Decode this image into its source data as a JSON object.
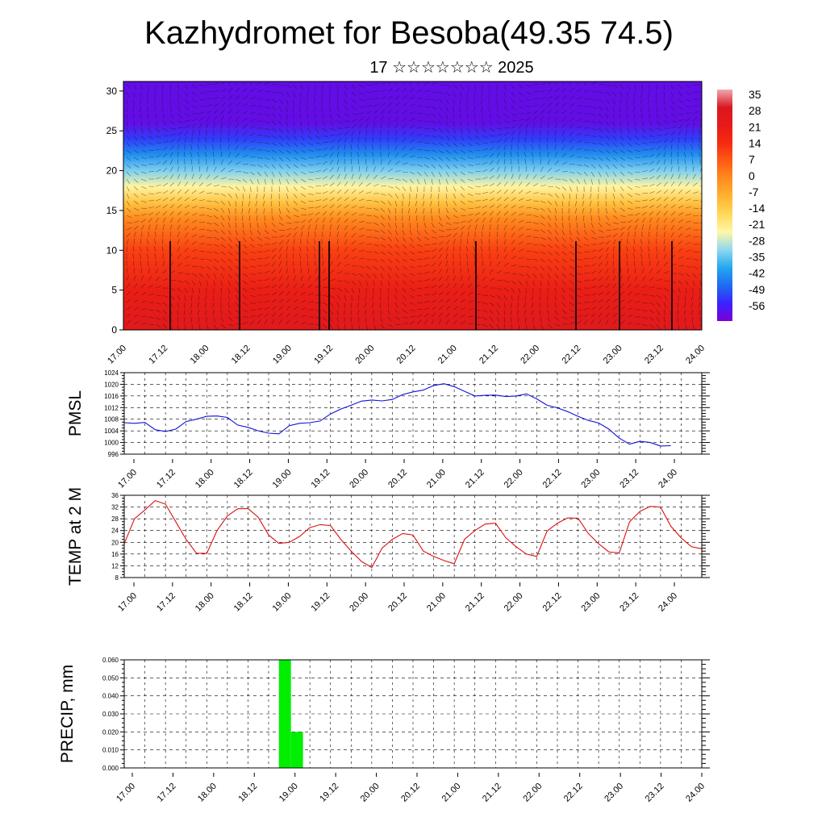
{
  "title": "Kazhydromet for Besoba(49.35 74.5)",
  "subtitle": "17 ☆☆☆☆☆☆☆ 2025",
  "time_ticks": [
    "17.00",
    "17.12",
    "18.00",
    "18.12",
    "19.00",
    "19.12",
    "20.00",
    "20.12",
    "21.00",
    "21.12",
    "22.00",
    "22.12",
    "23.00",
    "23.12",
    "24.00"
  ],
  "chart_data": [
    {
      "type": "heatmap",
      "title": "",
      "ylabel": "",
      "ylim": [
        0,
        30
      ],
      "y_ticks": [
        "0",
        "5",
        "10",
        "15",
        "20",
        "25",
        "30"
      ],
      "colorbar": {
        "labels": [
          "35",
          "28",
          "21",
          "14",
          "7",
          "0",
          "-7",
          "-14",
          "-21",
          "-28",
          "-35",
          "-42",
          "-49",
          "-56"
        ],
        "range": [
          -63,
          42
        ],
        "colors": [
          "#7a00d6",
          "#3a22ff",
          "#1e6cf0",
          "#22a8f0",
          "#8fd8f0",
          "#fff7a8",
          "#ffd85a",
          "#ffb330",
          "#ff8c1e",
          "#ff5a14",
          "#f52a10",
          "#e81a18",
          "#d81820",
          "#f2a8b0"
        ]
      },
      "temperature_profile": {
        "heights": [
          0,
          5,
          10,
          14,
          16,
          18,
          20,
          22,
          24,
          26,
          30
        ],
        "temperatures": [
          30,
          24,
          14,
          2,
          -10,
          -22,
          -32,
          -42,
          -52,
          -60,
          -60
        ]
      }
    },
    {
      "type": "line",
      "ylabel": "PMSL",
      "ylim": [
        996,
        1024
      ],
      "y_ticks": [
        "996",
        "1000",
        "1004",
        "1008",
        "1012",
        "1016",
        "1020",
        "1024"
      ],
      "color": "#1010dd",
      "x": [
        0,
        3,
        6,
        9,
        12,
        15,
        18,
        21,
        24,
        27,
        30,
        33,
        36,
        39,
        42,
        45,
        48,
        51,
        54,
        57,
        60,
        63,
        66,
        69,
        72,
        75,
        78,
        81,
        84,
        87,
        90,
        93,
        96,
        99,
        102,
        105,
        108,
        111,
        114,
        117,
        120,
        123,
        126,
        129,
        132,
        135,
        138,
        141,
        144,
        147,
        150,
        153,
        156,
        159,
        162,
        165,
        168
      ],
      "values": [
        1006.8,
        1006.6,
        1006.9,
        1004.4,
        1003.8,
        1004.6,
        1007.2,
        1008.0,
        1009.0,
        1009.1,
        1008.6,
        1006.0,
        1005.2,
        1004.0,
        1003.2,
        1003.0,
        1005.8,
        1006.6,
        1006.8,
        1007.4,
        1009.8,
        1011.5,
        1012.8,
        1014.2,
        1014.6,
        1014.3,
        1014.8,
        1016.5,
        1017.4,
        1018.0,
        1019.6,
        1020.2,
        1019.2,
        1017.6,
        1016.0,
        1016.2,
        1016.3,
        1015.8,
        1016.0,
        1016.7,
        1015.0,
        1012.8,
        1011.9,
        1010.6,
        1009.0,
        1007.6,
        1006.7,
        1004.6,
        1001.5,
        999.4,
        1000.4,
        1000.0,
        998.8,
        998.9,
        null,
        null,
        null
      ]
    },
    {
      "type": "line",
      "ylabel": "TEMP at 2 M",
      "ylim": [
        8,
        36
      ],
      "y_ticks": [
        "8",
        "12",
        "16",
        "20",
        "24",
        "28",
        "32",
        "36"
      ],
      "color": "#dd1010",
      "x": [
        0,
        3,
        6,
        9,
        12,
        15,
        18,
        21,
        24,
        27,
        30,
        33,
        36,
        39,
        42,
        45,
        48,
        51,
        54,
        57,
        60,
        63,
        66,
        69,
        72,
        75,
        78,
        81,
        84,
        87,
        90,
        93,
        96,
        99,
        102,
        105,
        108,
        111,
        114,
        117,
        120,
        123,
        126,
        129,
        132,
        135,
        138,
        141,
        144,
        147,
        150,
        153,
        156,
        159,
        162,
        165,
        168
      ],
      "values": [
        19.5,
        28.0,
        31.0,
        34.2,
        33.0,
        27.0,
        21.0,
        16.3,
        16.2,
        24.0,
        29.0,
        31.4,
        31.5,
        28.5,
        22.5,
        19.6,
        20.0,
        22.0,
        25.0,
        26.0,
        25.7,
        21.0,
        17.0,
        13.5,
        11.4,
        18.0,
        21.0,
        23.0,
        22.5,
        17.0,
        15.2,
        13.8,
        12.7,
        21.0,
        24.0,
        26.2,
        26.5,
        21.5,
        18.5,
        16.0,
        15.2,
        23.8,
        26.5,
        28.3,
        28.2,
        23.0,
        19.5,
        16.7,
        16.4,
        27.0,
        30.5,
        32.2,
        32.0,
        25.5,
        21.5,
        18.5,
        17.8
      ]
    },
    {
      "type": "bar",
      "ylabel": "PRECIP, mm",
      "ylim": [
        0,
        0.06
      ],
      "y_ticks": [
        "0.000",
        "0.010",
        "0.020",
        "0.030",
        "0.040",
        "0.050",
        "0.060"
      ],
      "color": "#00ee00",
      "bars": [
        {
          "x_start": 45,
          "x_end": 48.5,
          "value": 0.06
        },
        {
          "x_start": 48.5,
          "x_end": 52,
          "value": 0.02
        }
      ]
    }
  ]
}
